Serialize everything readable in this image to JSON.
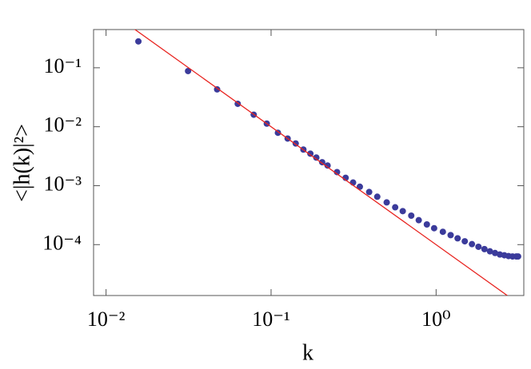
{
  "chart_data": {
    "type": "scatter",
    "xlabel": "k",
    "ylabel": "<|h(k)|²>",
    "xscale": "log",
    "yscale": "log",
    "xlim": [
      0.0084,
      3.4
    ],
    "ylim": [
      1.37e-05,
      0.445
    ],
    "xticks": [
      {
        "value": 0.01,
        "label": "10⁻²"
      },
      {
        "value": 0.1,
        "label": "10⁻¹"
      },
      {
        "value": 1,
        "label": "10⁰"
      }
    ],
    "yticks": [
      {
        "value": 0.0001,
        "label": "10⁻⁴"
      },
      {
        "value": 0.001,
        "label": "10⁻³"
      },
      {
        "value": 0.01,
        "label": "10⁻²"
      },
      {
        "value": 0.1,
        "label": "10⁻¹"
      }
    ],
    "color": "#3b3b9b",
    "x": [
      0.0157,
      0.0314,
      0.0471,
      0.0628,
      0.0785,
      0.0942,
      0.11,
      0.126,
      0.141,
      0.157,
      0.173,
      0.188,
      0.204,
      0.22,
      0.251,
      0.283,
      0.314,
      0.345,
      0.393,
      0.44,
      0.502,
      0.565,
      0.628,
      0.707,
      0.785,
      0.879,
      0.973,
      1.099,
      1.225,
      1.35,
      1.492,
      1.649,
      1.806,
      1.963,
      2.12,
      2.277,
      2.434,
      2.591,
      2.748,
      2.905,
      3.062,
      3.14
    ],
    "values": [
      0.28,
      0.088,
      0.043,
      0.0245,
      0.016,
      0.0113,
      0.0079,
      0.0063,
      0.0052,
      0.0041,
      0.0035,
      0.003,
      0.0025,
      0.0022,
      0.0017,
      0.00136,
      0.00113,
      0.00096,
      0.00078,
      0.00065,
      0.00052,
      0.00043,
      0.00037,
      0.00031,
      0.00026,
      0.00022,
      0.00019,
      0.000165,
      0.000145,
      0.000128,
      0.000114,
      0.000102,
      9.2e-05,
      8.4e-05,
      7.7e-05,
      7.2e-05,
      6.8e-05,
      6.6e-05,
      6.4e-05,
      6.3e-05,
      6.3e-05,
      6.3e-05
    ],
    "fit": {
      "type": "line",
      "color": "#e8231f",
      "x": [
        0.0148,
        2.7
      ],
      "values": [
        0.456,
        1.37e-05
      ]
    }
  }
}
